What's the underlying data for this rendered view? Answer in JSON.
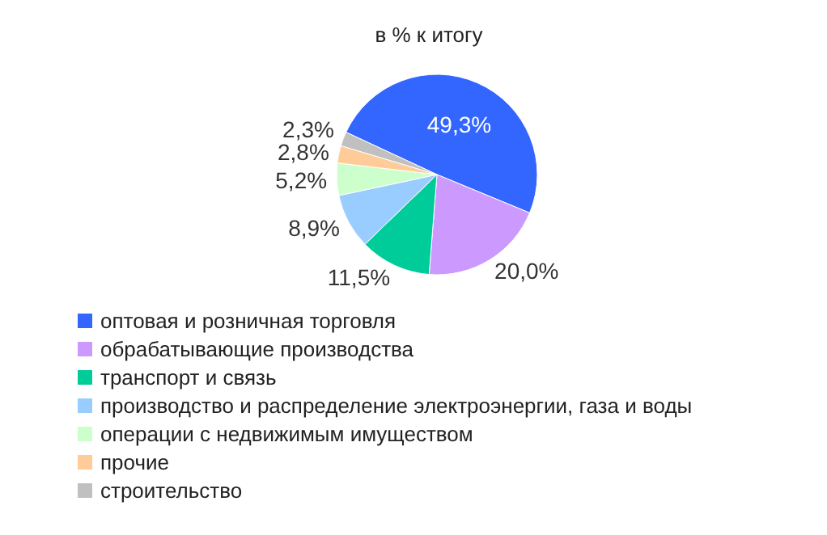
{
  "chart_data": {
    "type": "pie",
    "title": "в % к итогу",
    "categories": [
      "оптовая и розничная торговля",
      "обрабатывающие производства",
      "транспорт и связь",
      "производство и распределение электроэнергии, газа и воды",
      "операции с недвижимым имуществом",
      "прочие",
      "строительство"
    ],
    "values": [
      49.3,
      20.0,
      11.5,
      8.9,
      5.2,
      2.8,
      2.3
    ],
    "value_labels": [
      "49,3%",
      "20,0%",
      "11,5%",
      "8,9%",
      "5,2%",
      "2,8%",
      "2,3%"
    ],
    "colors": [
      "#3366ff",
      "#cc99ff",
      "#00cc99",
      "#99ccff",
      "#ccffcc",
      "#ffcc99",
      "#c0c0c0"
    ],
    "legend": "bottom"
  }
}
